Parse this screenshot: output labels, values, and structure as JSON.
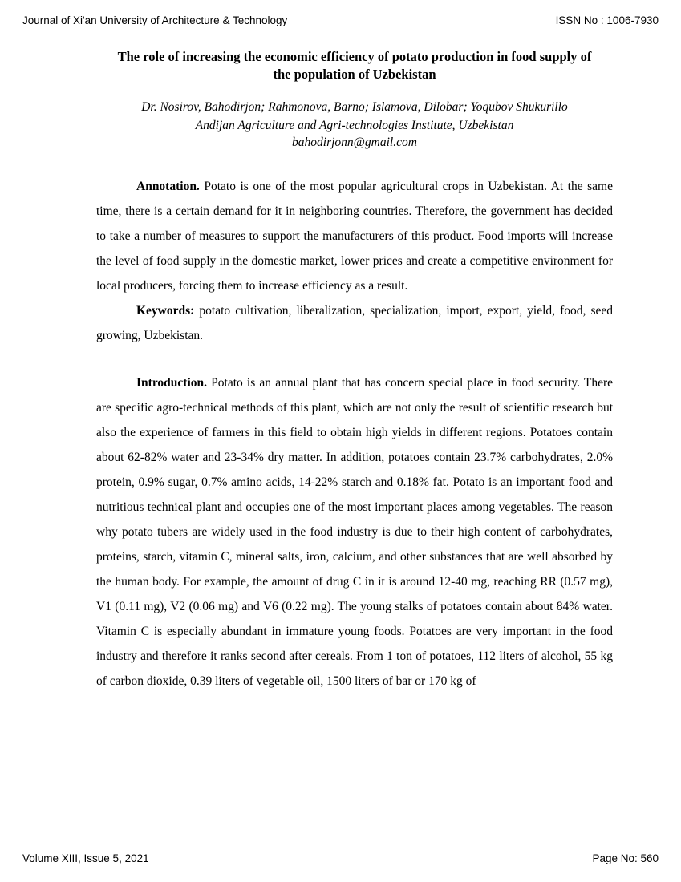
{
  "header": {
    "journal": "Journal of Xi'an University of Architecture & Technology",
    "issn": "ISSN No : 1006-7930"
  },
  "title": "The role of increasing the economic efficiency of potato production in food supply of the population of Uzbekistan",
  "authors": "Dr. Nosirov, Bahodirjon; Rahmonova, Barno; Islamova, Dilobar; Yoqubov Shukurillo",
  "affiliation": "Andijan Agriculture and Agri-technologies Institute, Uzbekistan",
  "email": "bahodirjonn@gmail.com",
  "sections": {
    "annotation": {
      "heading": "Annotation.",
      "text": " Potato is one of the most popular agricultural crops in Uzbekistan. At the same time, there is a certain demand for it in neighboring countries. Therefore, the government has decided to take a number of measures to support the manufacturers of this product. Food imports will increase the level of food supply in the domestic market, lower prices and create a competitive environment for local producers, forcing them to increase efficiency as a result."
    },
    "keywords": {
      "heading": "Keywords:",
      "text": " potato cultivation, liberalization, specialization, import, export, yield, food, seed growing, Uzbekistan."
    },
    "introduction": {
      "heading": "Introduction.",
      "text": " Potato is an annual plant that has concern special place in food security. There are specific agro-technical methods of this plant, which are not only the result of scientific research but also the experience of farmers in this field to obtain high yields in different regions. Potatoes contain about 62-82% water and 23-34% dry matter. In addition, potatoes contain 23.7% carbohydrates, 2.0% protein, 0.9% sugar, 0.7% amino acids, 14-22% starch and 0.18% fat. Potato is an important food and nutritious technical plant and occupies one of the most important places among vegetables. The reason why potato tubers are widely used in the food industry is due to their high content of carbohydrates, proteins, starch, vitamin C, mineral salts, iron, calcium, and other substances that are well absorbed by the human body. For example, the amount of drug C in it is around 12-40 mg, reaching RR (0.57 mg), V1 (0.11 mg), V2 (0.06 mg) and V6 (0.22 mg). The young stalks of potatoes contain about 84% water. Vitamin C is especially abundant in immature young foods. Potatoes are very important in the food industry and therefore it ranks second after cereals. From 1 ton of potatoes, 112 liters of alcohol, 55 kg of carbon dioxide, 0.39 liters of vegetable oil, 1500 liters of bar or 170 kg of"
    }
  },
  "footer": {
    "volume": "Volume XIII, Issue 5, 2021",
    "page": "Page No: 560"
  }
}
